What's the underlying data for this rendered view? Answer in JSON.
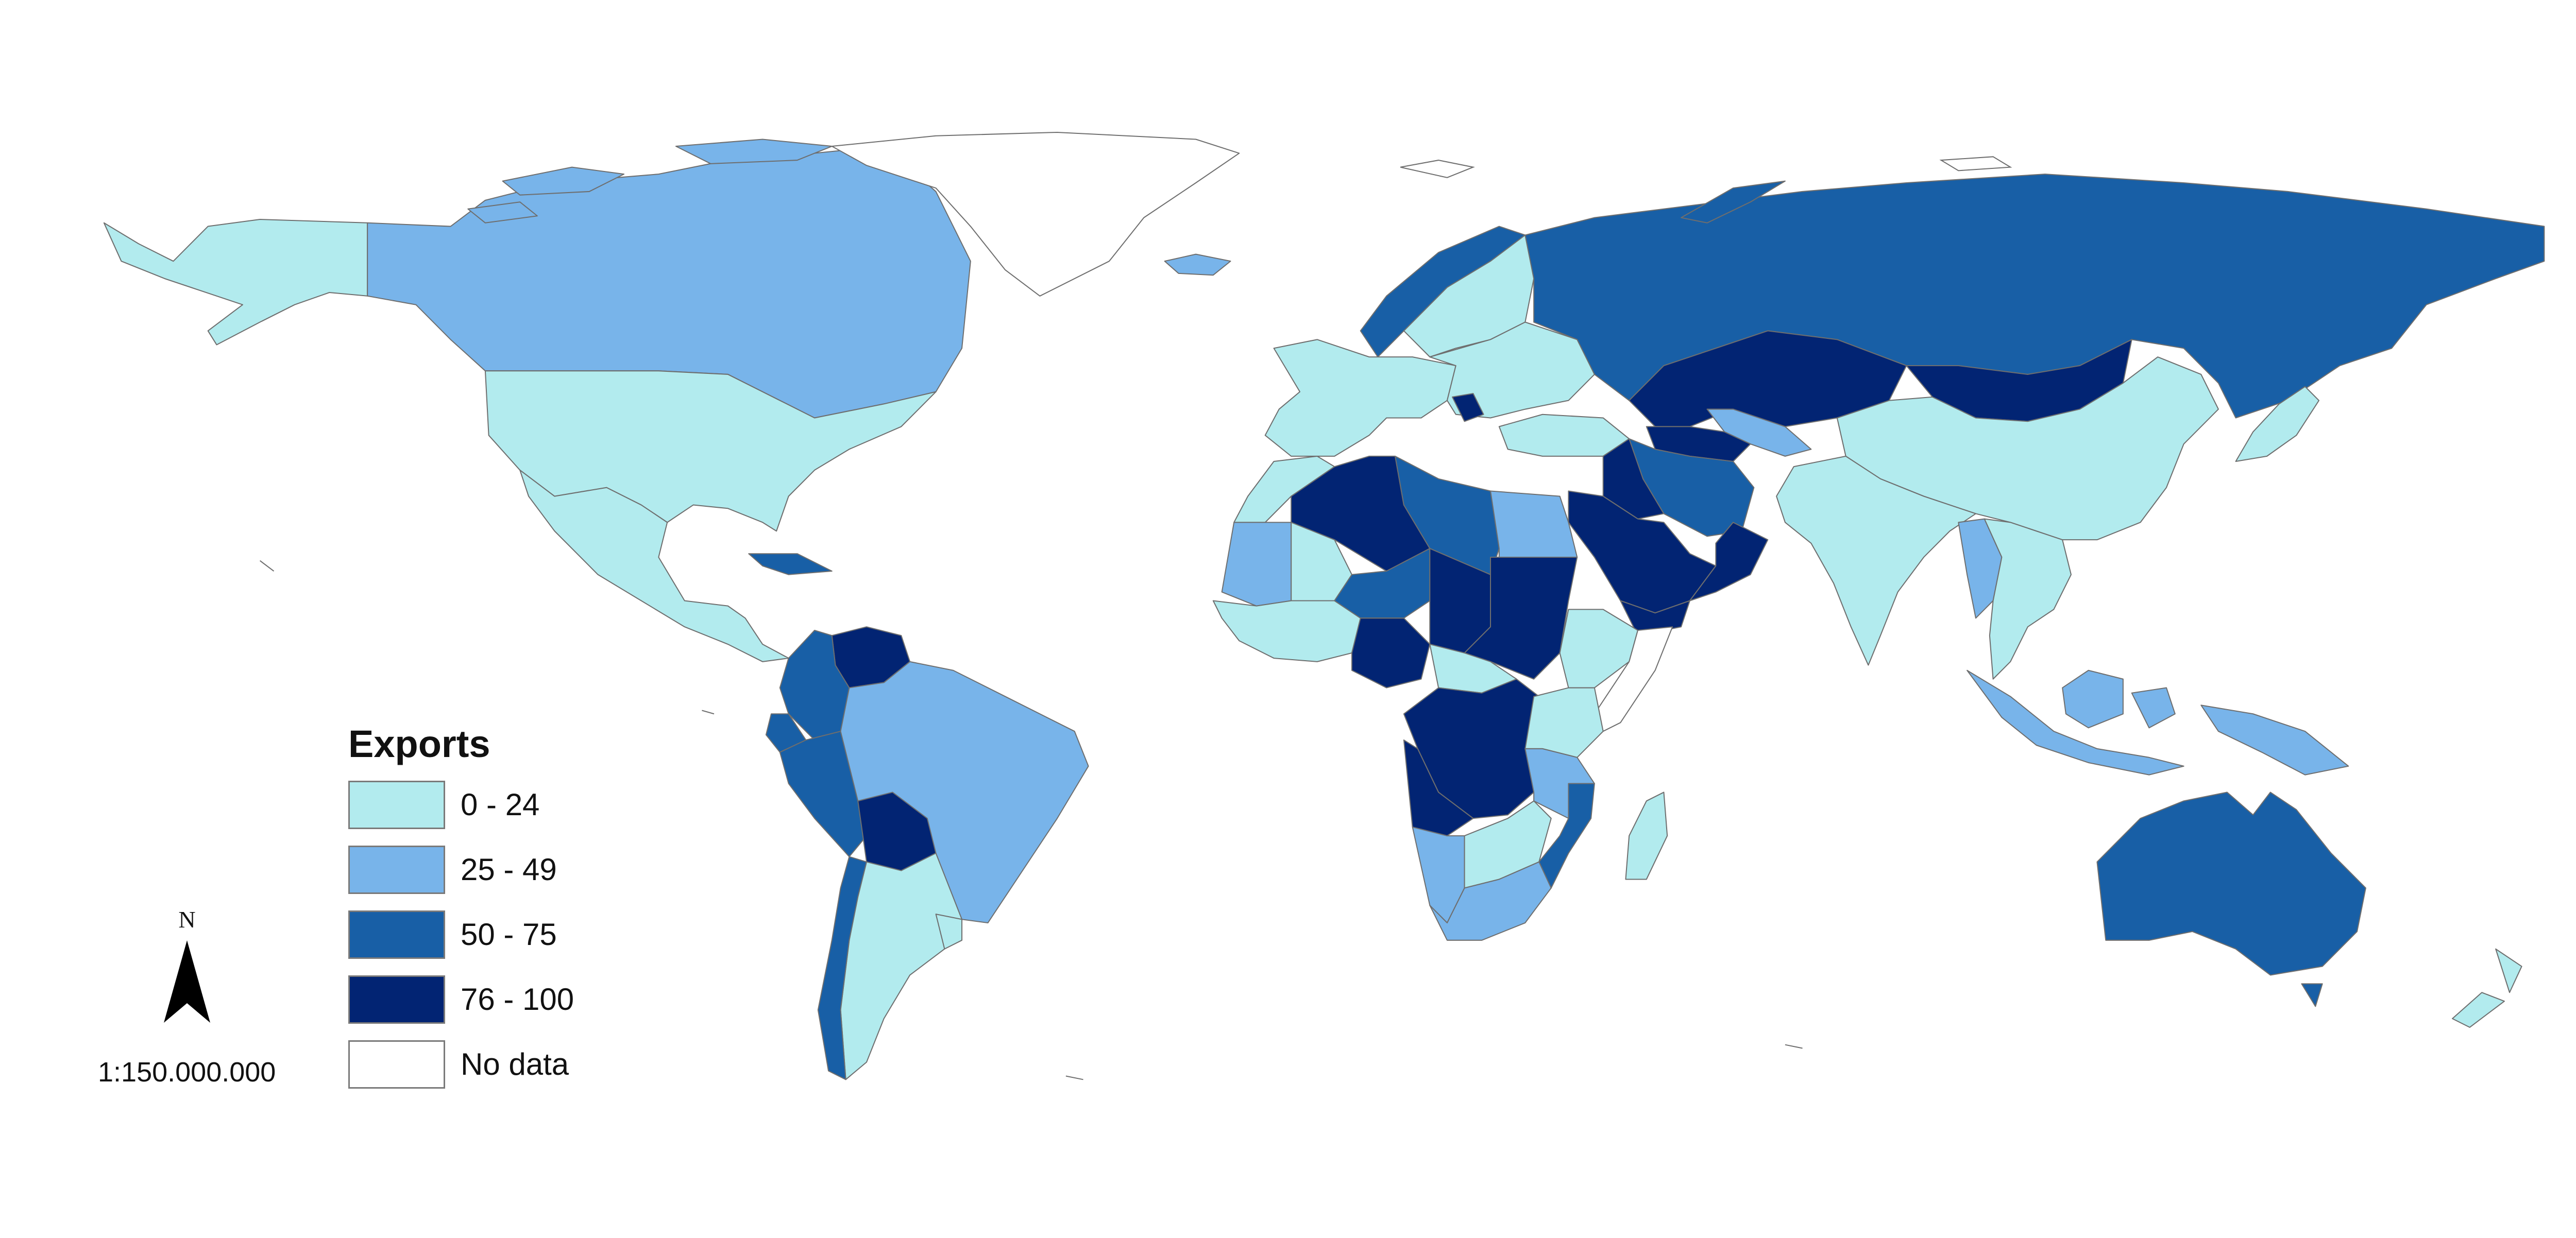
{
  "legend": {
    "title": "Exports",
    "classes": [
      {
        "label": "0 - 24",
        "color": "#b2ebee"
      },
      {
        "label": "25 - 49",
        "color": "#78b4ea"
      },
      {
        "label": "50 - 75",
        "color": "#185fa6"
      },
      {
        "label": "76 - 100",
        "color": "#022473"
      },
      {
        "label": "No data",
        "color": "#ffffff"
      }
    ]
  },
  "north_arrow": {
    "letter": "N"
  },
  "scale": {
    "text": "1:150.000.000"
  },
  "colors": {
    "border": "#6e6e6e",
    "background": "#ffffff"
  },
  "regions": [
    {
      "name": "Alaska",
      "class": 0
    },
    {
      "name": "Canada",
      "class": 1
    },
    {
      "name": "United States",
      "class": 0
    },
    {
      "name": "Mexico and Central America",
      "class": 0
    },
    {
      "name": "Cuba",
      "class": 2
    },
    {
      "name": "Greenland",
      "class": 4
    },
    {
      "name": "Venezuela",
      "class": 3
    },
    {
      "name": "Colombia",
      "class": 2
    },
    {
      "name": "Ecuador",
      "class": 2
    },
    {
      "name": "Peru",
      "class": 2
    },
    {
      "name": "Bolivia",
      "class": 3
    },
    {
      "name": "Brazil",
      "class": 1
    },
    {
      "name": "Chile",
      "class": 2
    },
    {
      "name": "Argentina",
      "class": 0
    },
    {
      "name": "Uruguay",
      "class": 0
    },
    {
      "name": "Iceland",
      "class": 1
    },
    {
      "name": "Norway",
      "class": 2
    },
    {
      "name": "Sweden and Finland",
      "class": 0
    },
    {
      "name": "Western Europe",
      "class": 0
    },
    {
      "name": "Eastern Europe",
      "class": 0
    },
    {
      "name": "Serbia",
      "class": 3
    },
    {
      "name": "Turkey",
      "class": 0
    },
    {
      "name": "Russia",
      "class": 2
    },
    {
      "name": "Kazakhstan",
      "class": 3
    },
    {
      "name": "Mongolia",
      "class": 3
    },
    {
      "name": "Uzbekistan",
      "class": 1
    },
    {
      "name": "Turkmenistan",
      "class": 3
    },
    {
      "name": "Iran",
      "class": 2
    },
    {
      "name": "Iraq",
      "class": 3
    },
    {
      "name": "Saudi Arabia",
      "class": 3
    },
    {
      "name": "Oman",
      "class": 3
    },
    {
      "name": "Yemen",
      "class": 3
    },
    {
      "name": "China",
      "class": 0
    },
    {
      "name": "India",
      "class": 0
    },
    {
      "name": "Southeast Asia",
      "class": 0
    },
    {
      "name": "Myanmar",
      "class": 1
    },
    {
      "name": "Japan",
      "class": 0
    },
    {
      "name": "Indonesia",
      "class": 1
    },
    {
      "name": "Papua New Guinea",
      "class": 1
    },
    {
      "name": "Australia",
      "class": 2
    },
    {
      "name": "New Zealand",
      "class": 0
    },
    {
      "name": "Morocco",
      "class": 0
    },
    {
      "name": "Algeria",
      "class": 3
    },
    {
      "name": "Libya",
      "class": 2
    },
    {
      "name": "Egypt",
      "class": 1
    },
    {
      "name": "Mauritania",
      "class": 1
    },
    {
      "name": "Mali",
      "class": 0
    },
    {
      "name": "Niger",
      "class": 2
    },
    {
      "name": "Chad",
      "class": 3
    },
    {
      "name": "Sudan",
      "class": 3
    },
    {
      "name": "Ethiopia",
      "class": 0
    },
    {
      "name": "Somalia",
      "class": 4
    },
    {
      "name": "Nigeria",
      "class": 3
    },
    {
      "name": "West Africa",
      "class": 0
    },
    {
      "name": "Central African Republic",
      "class": 0
    },
    {
      "name": "DR Congo",
      "class": 3
    },
    {
      "name": "Angola",
      "class": 3
    },
    {
      "name": "Kenya",
      "class": 0
    },
    {
      "name": "Tanzania",
      "class": 1
    },
    {
      "name": "Mozambique",
      "class": 2
    },
    {
      "name": "Madagascar",
      "class": 0
    },
    {
      "name": "Namibia",
      "class": 1
    },
    {
      "name": "Botswana and Zimbabwe",
      "class": 0
    },
    {
      "name": "South Africa",
      "class": 1
    }
  ]
}
